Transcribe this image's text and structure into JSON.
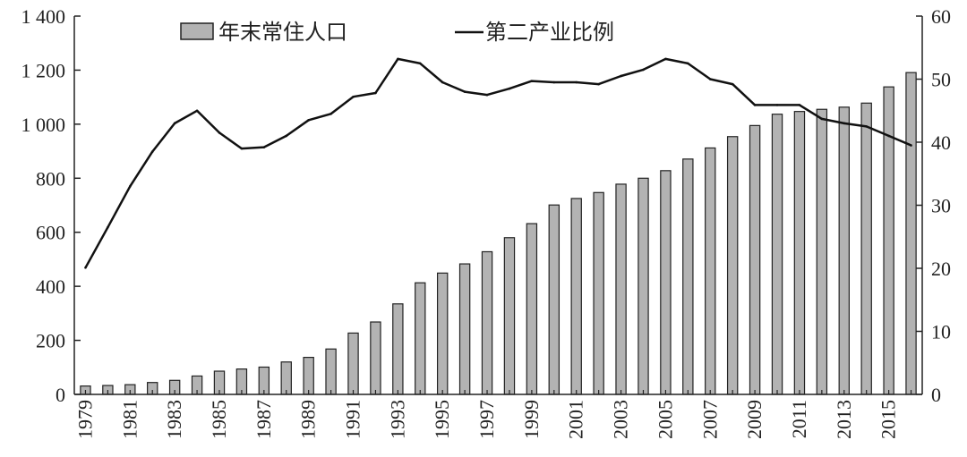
{
  "chart_data": {
    "type": "bar",
    "title": "",
    "xlabel": "",
    "ylabel": "",
    "categories": [
      "1979",
      "1980",
      "1981",
      "1982",
      "1983",
      "1984",
      "1985",
      "1986",
      "1987",
      "1988",
      "1989",
      "1990",
      "1991",
      "1992",
      "1993",
      "1994",
      "1995",
      "1996",
      "1997",
      "1998",
      "1999",
      "2000",
      "2001",
      "2002",
      "2003",
      "2004",
      "2005",
      "2006",
      "2007",
      "2008",
      "2009",
      "2010",
      "2011",
      "2012",
      "2013",
      "2014",
      "2015",
      "2016"
    ],
    "x_tick_labels": [
      "1979",
      "1981",
      "1983",
      "1985",
      "1987",
      "1989",
      "1991",
      "1993",
      "1995",
      "1997",
      "1999",
      "2001",
      "2003",
      "2005",
      "2007",
      "2009",
      "2011",
      "2013",
      "2015"
    ],
    "series": [
      {
        "name": "年末常住人口",
        "type": "bar",
        "axis": "left",
        "values": [
          31,
          33,
          36,
          44,
          52,
          68,
          86,
          94,
          101,
          120,
          137,
          168,
          227,
          268,
          335,
          413,
          449,
          483,
          528,
          580,
          632,
          701,
          725,
          747,
          778,
          800,
          828,
          871,
          912,
          954,
          995,
          1037,
          1047,
          1055,
          1063,
          1078,
          1138,
          1191
        ]
      },
      {
        "name": "第二产业比例",
        "type": "line",
        "axis": "right",
        "values": [
          20.1,
          26.5,
          33,
          38.5,
          43,
          45,
          41.5,
          39,
          39.2,
          41,
          43.5,
          44.5,
          47.2,
          47.8,
          53.2,
          52.5,
          49.5,
          48,
          47.5,
          48.5,
          49.7,
          49.5,
          49.5,
          49.2,
          50.5,
          51.5,
          53.2,
          52.5,
          50,
          49.2,
          45.9,
          45.9,
          45.9,
          43.7,
          43,
          42.5,
          41,
          39.5
        ]
      }
    ],
    "y_left": {
      "lim": [
        0,
        1400
      ],
      "ticks": [
        0,
        200,
        400,
        600,
        800,
        1000,
        1200,
        1400
      ],
      "tick_labels": [
        "0",
        "200",
        "400",
        "600",
        "800",
        "1 000",
        "1 200",
        "1 400"
      ]
    },
    "y_right": {
      "lim": [
        0,
        60
      ],
      "ticks": [
        0,
        10,
        20,
        30,
        40,
        50,
        60
      ],
      "tick_labels": [
        "0",
        "10",
        "20",
        "30",
        "40",
        "50",
        "60"
      ]
    },
    "legend": {
      "position": "top",
      "entries": [
        "年末常住人口",
        "第二产业比例"
      ]
    },
    "grid": false,
    "colors": {
      "bar_fill": "#b3b3b3",
      "bar_stroke": "#222222",
      "line": "#111111",
      "axis": "#222222"
    }
  }
}
